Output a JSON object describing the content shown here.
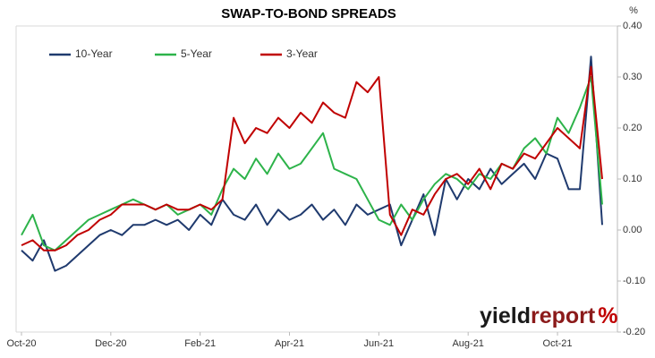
{
  "chart_data": {
    "type": "line",
    "title": "SWAP-TO-BOND SPREADS",
    "y_unit": "%",
    "logo": {
      "part1": "yield",
      "part2": "report",
      "part3": "%"
    },
    "categories": [
      "Oct-20",
      null,
      null,
      null,
      null,
      null,
      null,
      null,
      "Dec-20",
      null,
      null,
      null,
      null,
      null,
      null,
      null,
      "Feb-21",
      null,
      null,
      null,
      null,
      null,
      null,
      null,
      "Apr-21",
      null,
      null,
      null,
      null,
      null,
      null,
      null,
      "Jun-21",
      null,
      null,
      null,
      null,
      null,
      null,
      null,
      "Aug-21",
      null,
      null,
      null,
      null,
      null,
      null,
      null,
      "Oct-21",
      null,
      null,
      null,
      null
    ],
    "series": [
      {
        "name": "10-Year",
        "color": "#1f3a6e",
        "values": [
          -0.04,
          -0.06,
          -0.02,
          -0.08,
          -0.07,
          -0.05,
          -0.03,
          -0.01,
          0.0,
          -0.01,
          0.01,
          0.01,
          0.02,
          0.01,
          0.02,
          0.0,
          0.03,
          0.01,
          0.06,
          0.03,
          0.02,
          0.05,
          0.01,
          0.04,
          0.02,
          0.03,
          0.05,
          0.02,
          0.04,
          0.01,
          0.05,
          0.03,
          0.04,
          0.05,
          -0.03,
          0.02,
          0.07,
          -0.01,
          0.1,
          0.06,
          0.1,
          0.08,
          0.12,
          0.09,
          0.11,
          0.13,
          0.1,
          0.15,
          0.14,
          0.08,
          0.08,
          0.34,
          0.01
        ]
      },
      {
        "name": "5-Year",
        "color": "#2db34a",
        "values": [
          -0.01,
          0.03,
          -0.03,
          -0.04,
          -0.02,
          0.0,
          0.02,
          0.03,
          0.04,
          0.05,
          0.06,
          0.05,
          0.04,
          0.05,
          0.03,
          0.04,
          0.05,
          0.03,
          0.08,
          0.12,
          0.1,
          0.14,
          0.11,
          0.15,
          0.12,
          0.13,
          0.16,
          0.19,
          0.12,
          0.11,
          0.1,
          0.06,
          0.02,
          0.01,
          0.05,
          0.02,
          0.06,
          0.09,
          0.11,
          0.1,
          0.08,
          0.11,
          0.1,
          0.13,
          0.12,
          0.16,
          0.18,
          0.15,
          0.22,
          0.19,
          0.24,
          0.3,
          0.05
        ]
      },
      {
        "name": "3-Year",
        "color": "#c00000",
        "values": [
          -0.03,
          -0.02,
          -0.04,
          -0.04,
          -0.03,
          -0.01,
          0.0,
          0.02,
          0.03,
          0.05,
          0.05,
          0.05,
          0.04,
          0.05,
          0.04,
          0.04,
          0.05,
          0.04,
          0.06,
          0.22,
          0.17,
          0.2,
          0.19,
          0.22,
          0.2,
          0.23,
          0.21,
          0.25,
          0.23,
          0.22,
          0.29,
          0.27,
          0.3,
          0.03,
          -0.01,
          0.04,
          0.03,
          0.07,
          0.1,
          0.11,
          0.09,
          0.12,
          0.08,
          0.13,
          0.12,
          0.15,
          0.14,
          0.17,
          0.2,
          0.18,
          0.16,
          0.32,
          0.1
        ]
      }
    ],
    "ylim": [
      -0.2,
      0.4
    ],
    "yticks": [
      {
        "value": 0.4,
        "label": "0.40"
      },
      {
        "value": 0.3,
        "label": "0.30"
      },
      {
        "value": 0.2,
        "label": "0.20"
      },
      {
        "value": 0.1,
        "label": "0.10"
      },
      {
        "value": 0,
        "label": "0.00"
      },
      {
        "value": -0.1,
        "label": "-0.10"
      },
      {
        "value": -0.2,
        "label": "-0.20"
      }
    ],
    "grid": false
  }
}
